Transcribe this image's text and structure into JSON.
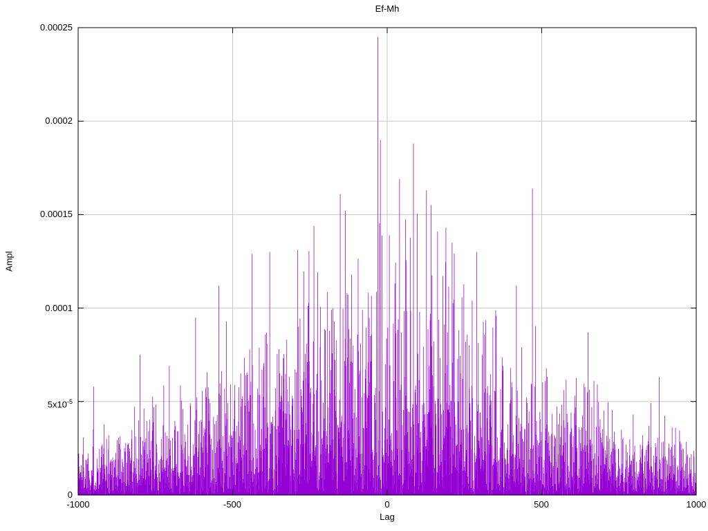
{
  "chart_data": {
    "type": "line",
    "style": "dense vertical spike train (impulse-like correlation plot)",
    "title": "Ef-Mh",
    "xlabel": "Lag",
    "ylabel": "Ampl",
    "xlim": [
      -1000,
      1000
    ],
    "ylim": [
      0,
      0.00025
    ],
    "grid": true,
    "legend_position": "none",
    "line_color": "#9400d3",
    "grid_color": "#c8c8c8",
    "border_color": "#000000",
    "x_axis": {
      "ticks": [
        -1000,
        -500,
        0,
        500,
        1000
      ],
      "tick_labels": [
        "-1000",
        "-500",
        "0",
        "500",
        "1000"
      ]
    },
    "y_axis": {
      "ticks": [
        0,
        5e-05,
        0.0001,
        0.00015,
        0.0002,
        0.00025
      ],
      "tick_labels_top_to_bottom": [
        "0.00025",
        "0.0002",
        "0.00015",
        "0.0001",
        "5x10-5",
        "0"
      ],
      "superscript_label": {
        "mantissa": "5x10",
        "exponent": "-5"
      }
    },
    "series": [
      {
        "name": "Ef-Mh",
        "description": "Noisy amplitude-vs-lag spectrum: dense low-level spikes across the full lag range with a roughly bell-shaped envelope peaking near lag 0; maximum spike ~0.000245 just left of lag 0; edge noise floor ~0.00002 with spikes to ~0.00005.",
        "n_points": 2001,
        "seed": 1337,
        "envelope_mean": {
          "base": 1.5e-05,
          "amp": 3.7e-05,
          "sigma": 600
        },
        "envelope_cap": {
          "base": 5e-05,
          "amp": 0.00015,
          "sigma": 500
        },
        "notable_peaks": [
          {
            "x": -30,
            "y": 0.000245
          },
          {
            "x": -22,
            "y": 0.00019
          },
          {
            "x": 85,
            "y": 0.000188
          },
          {
            "x": 40,
            "y": 0.000169
          },
          {
            "x": 127,
            "y": 0.000163
          },
          {
            "x": 470,
            "y": 0.000164
          },
          {
            "x": -152,
            "y": 0.000161
          },
          {
            "x": -135,
            "y": 0.000152
          },
          {
            "x": 190,
            "y": 0.000143
          },
          {
            "x": 163,
            "y": 0.000141
          },
          {
            "x": 210,
            "y": 0.000135
          },
          {
            "x": -290,
            "y": 0.000131
          },
          {
            "x": -380,
            "y": 0.00013
          },
          {
            "x": -437,
            "y": 0.000129
          },
          {
            "x": 290,
            "y": 0.00013
          },
          {
            "x": -545,
            "y": 0.000112
          },
          {
            "x": 418,
            "y": 0.000112
          },
          {
            "x": -620,
            "y": 9.5e-05
          },
          {
            "x": 650,
            "y": 8.7e-05
          },
          {
            "x": -800,
            "y": 7.5e-05
          },
          {
            "x": 880,
            "y": 6.3e-05
          },
          {
            "x": -950,
            "y": 5.8e-05
          }
        ]
      }
    ]
  }
}
